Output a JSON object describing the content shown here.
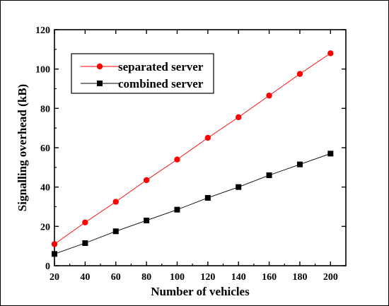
{
  "chart_data": {
    "type": "line",
    "xlabel": "Number of vehicles",
    "ylabel": "Signalling overhead (kB)",
    "xlim": [
      20,
      210
    ],
    "ylim": [
      0,
      120
    ],
    "xticks": [
      20,
      40,
      60,
      80,
      100,
      120,
      140,
      160,
      180,
      200
    ],
    "yticks": [
      0,
      20,
      40,
      60,
      80,
      100,
      120
    ],
    "grid": false,
    "legend_position": "top-left",
    "x": [
      20,
      40,
      60,
      80,
      100,
      120,
      140,
      160,
      180,
      200
    ],
    "series": [
      {
        "name": "separated server",
        "color": "#ff0000",
        "marker": "circle",
        "values": [
          11,
          22,
          32.5,
          43.5,
          54,
          65,
          75.5,
          86.5,
          97.5,
          108
        ]
      },
      {
        "name": "combined server",
        "color": "#000000",
        "marker": "square",
        "values": [
          6,
          11.5,
          17.5,
          23,
          28.5,
          34.5,
          40,
          46,
          51.5,
          57
        ]
      }
    ]
  }
}
